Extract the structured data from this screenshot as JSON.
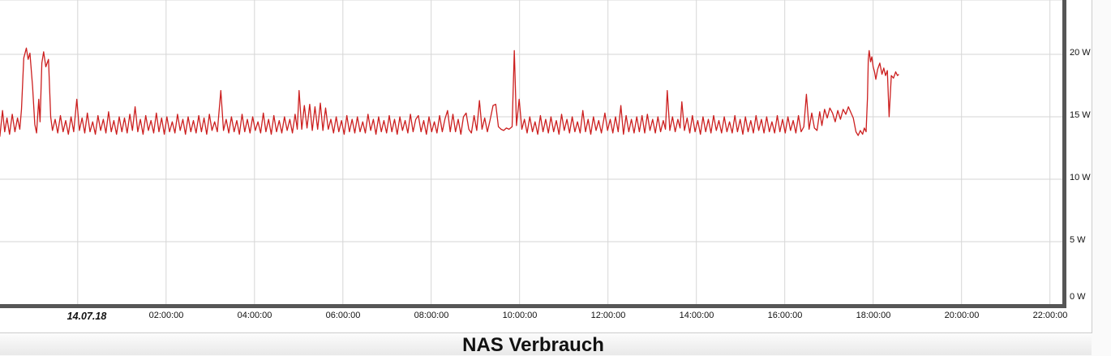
{
  "page": {
    "background_color": "#fafafa",
    "card_background": "#ffffff",
    "card_border_color": "#cccccc"
  },
  "chart_data": {
    "type": "line",
    "title": "NAS Verbrauch",
    "xlabel": "",
    "ylabel": "",
    "x_unit": "hours relative to midnight 14.07.18",
    "y_unit": "W",
    "xlim": [
      -1.757,
      22.28
    ],
    "ylim": [
      0,
      24.35
    ],
    "grid": true,
    "legend": "none",
    "series_color": "#cc1f1f",
    "grid_color": "#d6d6d6",
    "axis_border_color": "#565656",
    "label_color": "#111111",
    "x_ticks": [
      {
        "t": 0,
        "label": "14.07.18",
        "emphasis": true,
        "dx": 11
      },
      {
        "t": 2,
        "label": "02:00:00"
      },
      {
        "t": 4,
        "label": "04:00:00"
      },
      {
        "t": 6,
        "label": "06:00:00"
      },
      {
        "t": 8,
        "label": "08:00:00"
      },
      {
        "t": 10,
        "label": "10:00:00"
      },
      {
        "t": 12,
        "label": "12:00:00"
      },
      {
        "t": 14,
        "label": "14:00:00"
      },
      {
        "t": 16,
        "label": "16:00:00"
      },
      {
        "t": 18,
        "label": "18:00:00"
      },
      {
        "t": 20,
        "label": "20:00:00"
      },
      {
        "t": 22,
        "label": "22:00:00"
      }
    ],
    "y_ticks": [
      {
        "w": 0,
        "label": "0 W"
      },
      {
        "w": 5,
        "label": "5 W"
      },
      {
        "w": 10,
        "label": "10 W"
      },
      {
        "w": 15,
        "label": "15 W"
      },
      {
        "w": 20,
        "label": "20 W"
      }
    ],
    "points": [
      [
        -1.76,
        13.4
      ],
      [
        -1.7,
        15.5
      ],
      [
        -1.65,
        13.8
      ],
      [
        -1.6,
        14.9
      ],
      [
        -1.54,
        13.6
      ],
      [
        -1.48,
        15.2
      ],
      [
        -1.42,
        13.8
      ],
      [
        -1.36,
        14.9
      ],
      [
        -1.31,
        14.0
      ],
      [
        -1.27,
        15.6
      ],
      [
        -1.22,
        19.7
      ],
      [
        -1.16,
        20.5
      ],
      [
        -1.12,
        19.6
      ],
      [
        -1.08,
        20.1
      ],
      [
        -1.02,
        17.4
      ],
      [
        -0.97,
        14.4
      ],
      [
        -0.93,
        13.7
      ],
      [
        -0.88,
        16.4
      ],
      [
        -0.85,
        14.6
      ],
      [
        -0.81,
        19.3
      ],
      [
        -0.77,
        20.2
      ],
      [
        -0.72,
        19.0
      ],
      [
        -0.66,
        19.6
      ],
      [
        -0.61,
        15.0
      ],
      [
        -0.57,
        13.9
      ],
      [
        -0.51,
        14.8
      ],
      [
        -0.45,
        13.7
      ],
      [
        -0.39,
        15.1
      ],
      [
        -0.33,
        13.8
      ],
      [
        -0.27,
        14.7
      ],
      [
        -0.21,
        13.6
      ],
      [
        -0.15,
        15.0
      ],
      [
        -0.09,
        13.8
      ],
      [
        -0.02,
        16.4
      ],
      [
        0.04,
        13.9
      ],
      [
        0.1,
        14.9
      ],
      [
        0.16,
        13.7
      ],
      [
        0.22,
        15.3
      ],
      [
        0.28,
        13.8
      ],
      [
        0.34,
        14.6
      ],
      [
        0.4,
        13.6
      ],
      [
        0.46,
        15.1
      ],
      [
        0.52,
        13.9
      ],
      [
        0.58,
        14.8
      ],
      [
        0.64,
        13.7
      ],
      [
        0.7,
        15.4
      ],
      [
        0.76,
        13.8
      ],
      [
        0.82,
        14.7
      ],
      [
        0.88,
        13.6
      ],
      [
        0.94,
        15.0
      ],
      [
        1.0,
        13.8
      ],
      [
        1.06,
        14.9
      ],
      [
        1.12,
        13.7
      ],
      [
        1.18,
        15.2
      ],
      [
        1.24,
        13.9
      ],
      [
        1.3,
        15.8
      ],
      [
        1.36,
        13.8
      ],
      [
        1.42,
        14.8
      ],
      [
        1.48,
        13.6
      ],
      [
        1.54,
        15.1
      ],
      [
        1.6,
        13.9
      ],
      [
        1.66,
        14.7
      ],
      [
        1.72,
        13.7
      ],
      [
        1.78,
        15.3
      ],
      [
        1.84,
        13.8
      ],
      [
        1.9,
        14.9
      ],
      [
        1.96,
        13.6
      ],
      [
        2.02,
        15.0
      ],
      [
        2.08,
        13.8
      ],
      [
        2.14,
        14.6
      ],
      [
        2.2,
        13.7
      ],
      [
        2.26,
        15.2
      ],
      [
        2.32,
        13.9
      ],
      [
        2.38,
        14.8
      ],
      [
        2.44,
        13.6
      ],
      [
        2.5,
        15.0
      ],
      [
        2.56,
        13.8
      ],
      [
        2.62,
        14.7
      ],
      [
        2.68,
        13.7
      ],
      [
        2.74,
        15.1
      ],
      [
        2.8,
        13.8
      ],
      [
        2.86,
        14.9
      ],
      [
        2.92,
        13.6
      ],
      [
        2.98,
        15.2
      ],
      [
        3.04,
        13.9
      ],
      [
        3.1,
        14.6
      ],
      [
        3.16,
        13.8
      ],
      [
        3.24,
        17.1
      ],
      [
        3.3,
        13.9
      ],
      [
        3.36,
        14.8
      ],
      [
        3.42,
        13.7
      ],
      [
        3.48,
        15.0
      ],
      [
        3.54,
        13.8
      ],
      [
        3.6,
        14.7
      ],
      [
        3.66,
        13.6
      ],
      [
        3.72,
        15.2
      ],
      [
        3.78,
        13.8
      ],
      [
        3.84,
        14.8
      ],
      [
        3.9,
        13.7
      ],
      [
        3.96,
        15.0
      ],
      [
        4.02,
        13.9
      ],
      [
        4.08,
        14.6
      ],
      [
        4.14,
        13.7
      ],
      [
        4.2,
        15.3
      ],
      [
        4.26,
        13.8
      ],
      [
        4.32,
        14.8
      ],
      [
        4.38,
        13.6
      ],
      [
        4.44,
        15.1
      ],
      [
        4.5,
        13.8
      ],
      [
        4.56,
        14.7
      ],
      [
        4.62,
        13.7
      ],
      [
        4.68,
        15.0
      ],
      [
        4.74,
        13.9
      ],
      [
        4.8,
        14.8
      ],
      [
        4.86,
        13.7
      ],
      [
        4.92,
        15.2
      ],
      [
        4.97,
        14.0
      ],
      [
        5.01,
        17.1
      ],
      [
        5.07,
        14.0
      ],
      [
        5.13,
        15.9
      ],
      [
        5.19,
        14.1
      ],
      [
        5.25,
        16.0
      ],
      [
        5.31,
        13.9
      ],
      [
        5.37,
        15.8
      ],
      [
        5.43,
        14.0
      ],
      [
        5.49,
        16.1
      ],
      [
        5.55,
        13.9
      ],
      [
        5.61,
        15.7
      ],
      [
        5.67,
        14.0
      ],
      [
        5.73,
        14.8
      ],
      [
        5.79,
        13.7
      ],
      [
        5.85,
        15.0
      ],
      [
        5.91,
        13.8
      ],
      [
        5.97,
        14.7
      ],
      [
        6.03,
        13.6
      ],
      [
        6.09,
        15.1
      ],
      [
        6.15,
        13.8
      ],
      [
        6.21,
        14.8
      ],
      [
        6.27,
        13.7
      ],
      [
        6.33,
        15.0
      ],
      [
        6.39,
        13.8
      ],
      [
        6.45,
        14.6
      ],
      [
        6.51,
        13.7
      ],
      [
        6.57,
        15.2
      ],
      [
        6.63,
        13.9
      ],
      [
        6.69,
        14.8
      ],
      [
        6.75,
        13.6
      ],
      [
        6.81,
        15.0
      ],
      [
        6.87,
        13.8
      ],
      [
        6.93,
        14.7
      ],
      [
        6.99,
        13.7
      ],
      [
        7.05,
        15.1
      ],
      [
        7.11,
        13.8
      ],
      [
        7.17,
        14.8
      ],
      [
        7.23,
        13.6
      ],
      [
        7.29,
        15.0
      ],
      [
        7.35,
        13.9
      ],
      [
        7.41,
        14.7
      ],
      [
        7.47,
        13.7
      ],
      [
        7.53,
        15.2
      ],
      [
        7.59,
        13.8
      ],
      [
        7.65,
        14.8
      ],
      [
        7.71,
        15.1
      ],
      [
        7.77,
        13.8
      ],
      [
        7.83,
        14.7
      ],
      [
        7.89,
        13.6
      ],
      [
        7.95,
        15.0
      ],
      [
        8.01,
        13.8
      ],
      [
        8.07,
        14.6
      ],
      [
        8.13,
        13.7
      ],
      [
        8.19,
        15.1
      ],
      [
        8.25,
        13.8
      ],
      [
        8.31,
        14.8
      ],
      [
        8.37,
        15.5
      ],
      [
        8.43,
        13.8
      ],
      [
        8.49,
        15.2
      ],
      [
        8.55,
        13.8
      ],
      [
        8.61,
        14.8
      ],
      [
        8.67,
        13.6
      ],
      [
        8.73,
        15.0
      ],
      [
        8.79,
        15.3
      ],
      [
        8.85,
        14.0
      ],
      [
        8.91,
        13.7
      ],
      [
        8.97,
        15.1
      ],
      [
        9.03,
        13.9
      ],
      [
        9.09,
        16.3
      ],
      [
        9.15,
        14.0
      ],
      [
        9.21,
        14.9
      ],
      [
        9.27,
        13.8
      ],
      [
        9.33,
        14.7
      ],
      [
        9.4,
        15.9
      ],
      [
        9.46,
        16.0
      ],
      [
        9.52,
        14.2
      ],
      [
        9.58,
        14.0
      ],
      [
        9.64,
        13.9
      ],
      [
        9.7,
        14.1
      ],
      [
        9.76,
        14.0
      ],
      [
        9.83,
        14.2
      ],
      [
        9.88,
        20.3
      ],
      [
        9.93,
        14.3
      ],
      [
        9.99,
        16.4
      ],
      [
        10.05,
        14.0
      ],
      [
        10.11,
        14.8
      ],
      [
        10.17,
        13.7
      ],
      [
        10.23,
        15.0
      ],
      [
        10.29,
        13.8
      ],
      [
        10.35,
        14.6
      ],
      [
        10.41,
        13.6
      ],
      [
        10.47,
        15.1
      ],
      [
        10.53,
        13.8
      ],
      [
        10.59,
        14.8
      ],
      [
        10.65,
        13.7
      ],
      [
        10.71,
        15.0
      ],
      [
        10.77,
        13.8
      ],
      [
        10.83,
        14.7
      ],
      [
        10.89,
        13.6
      ],
      [
        10.95,
        15.2
      ],
      [
        11.01,
        13.9
      ],
      [
        11.07,
        14.8
      ],
      [
        11.13,
        13.7
      ],
      [
        11.19,
        15.0
      ],
      [
        11.25,
        13.8
      ],
      [
        11.31,
        14.6
      ],
      [
        11.37,
        13.7
      ],
      [
        11.43,
        15.5
      ],
      [
        11.49,
        13.8
      ],
      [
        11.55,
        14.8
      ],
      [
        11.61,
        13.6
      ],
      [
        11.67,
        15.0
      ],
      [
        11.73,
        13.9
      ],
      [
        11.79,
        14.7
      ],
      [
        11.85,
        13.7
      ],
      [
        11.93,
        15.3
      ],
      [
        11.99,
        13.9
      ],
      [
        12.05,
        14.8
      ],
      [
        12.11,
        13.7
      ],
      [
        12.17,
        15.0
      ],
      [
        12.23,
        13.8
      ],
      [
        12.29,
        15.9
      ],
      [
        12.35,
        13.6
      ],
      [
        12.41,
        15.1
      ],
      [
        12.47,
        13.8
      ],
      [
        12.53,
        14.8
      ],
      [
        12.59,
        13.7
      ],
      [
        12.65,
        15.0
      ],
      [
        12.71,
        13.8
      ],
      [
        12.77,
        15.1
      ],
      [
        12.83,
        13.7
      ],
      [
        12.89,
        15.2
      ],
      [
        12.95,
        13.9
      ],
      [
        13.01,
        14.8
      ],
      [
        13.07,
        13.7
      ],
      [
        13.13,
        15.0
      ],
      [
        13.19,
        13.8
      ],
      [
        13.25,
        14.7
      ],
      [
        13.3,
        14.0
      ],
      [
        13.34,
        17.1
      ],
      [
        13.4,
        13.9
      ],
      [
        13.46,
        15.0
      ],
      [
        13.52,
        13.8
      ],
      [
        13.58,
        14.8
      ],
      [
        13.63,
        14.1
      ],
      [
        13.67,
        16.2
      ],
      [
        13.73,
        13.9
      ],
      [
        13.79,
        14.9
      ],
      [
        13.85,
        13.7
      ],
      [
        13.91,
        15.1
      ],
      [
        13.97,
        13.8
      ],
      [
        14.03,
        14.7
      ],
      [
        14.09,
        13.6
      ],
      [
        14.15,
        15.0
      ],
      [
        14.21,
        13.8
      ],
      [
        14.27,
        14.8
      ],
      [
        14.33,
        13.7
      ],
      [
        14.39,
        15.1
      ],
      [
        14.45,
        13.9
      ],
      [
        14.51,
        14.7
      ],
      [
        14.57,
        13.7
      ],
      [
        14.63,
        15.0
      ],
      [
        14.69,
        13.8
      ],
      [
        14.75,
        14.6
      ],
      [
        14.81,
        13.7
      ],
      [
        14.87,
        15.1
      ],
      [
        14.93,
        13.8
      ],
      [
        14.99,
        14.8
      ],
      [
        15.05,
        13.6
      ],
      [
        15.11,
        15.0
      ],
      [
        15.17,
        13.8
      ],
      [
        15.23,
        14.7
      ],
      [
        15.29,
        13.7
      ],
      [
        15.35,
        15.1
      ],
      [
        15.41,
        13.9
      ],
      [
        15.47,
        14.8
      ],
      [
        15.53,
        13.7
      ],
      [
        15.59,
        15.0
      ],
      [
        15.65,
        13.8
      ],
      [
        15.71,
        14.6
      ],
      [
        15.77,
        13.7
      ],
      [
        15.83,
        15.1
      ],
      [
        15.89,
        13.8
      ],
      [
        15.95,
        14.8
      ],
      [
        16.01,
        13.7
      ],
      [
        16.07,
        15.0
      ],
      [
        16.13,
        13.9
      ],
      [
        16.19,
        14.7
      ],
      [
        16.25,
        13.7
      ],
      [
        16.31,
        15.1
      ],
      [
        16.37,
        13.8
      ],
      [
        16.43,
        14.2
      ],
      [
        16.49,
        16.8
      ],
      [
        16.55,
        14.0
      ],
      [
        16.61,
        15.3
      ],
      [
        16.67,
        14.1
      ],
      [
        16.73,
        13.9
      ],
      [
        16.79,
        15.4
      ],
      [
        16.84,
        14.3
      ],
      [
        16.9,
        15.6
      ],
      [
        16.96,
        14.9
      ],
      [
        17.02,
        15.7
      ],
      [
        17.08,
        15.3
      ],
      [
        17.14,
        14.6
      ],
      [
        17.2,
        15.5
      ],
      [
        17.26,
        14.8
      ],
      [
        17.32,
        15.6
      ],
      [
        17.38,
        15.2
      ],
      [
        17.44,
        15.8
      ],
      [
        17.5,
        15.3
      ],
      [
        17.55,
        14.9
      ],
      [
        17.61,
        13.8
      ],
      [
        17.66,
        13.5
      ],
      [
        17.71,
        13.9
      ],
      [
        17.76,
        13.6
      ],
      [
        17.8,
        14.1
      ],
      [
        17.84,
        13.8
      ],
      [
        17.87,
        16.5
      ],
      [
        17.89,
        19.6
      ],
      [
        17.91,
        20.3
      ],
      [
        17.94,
        19.4
      ],
      [
        17.97,
        19.8
      ],
      [
        18.0,
        19.0
      ],
      [
        18.03,
        18.6
      ],
      [
        18.06,
        18.0
      ],
      [
        18.1,
        18.8
      ],
      [
        18.15,
        19.3
      ],
      [
        18.2,
        18.4
      ],
      [
        18.24,
        18.9
      ],
      [
        18.28,
        18.3
      ],
      [
        18.32,
        18.7
      ],
      [
        18.36,
        15.0
      ],
      [
        18.41,
        18.3
      ],
      [
        18.46,
        18.1
      ],
      [
        18.51,
        18.6
      ],
      [
        18.55,
        18.3
      ],
      [
        18.58,
        18.4
      ]
    ]
  }
}
